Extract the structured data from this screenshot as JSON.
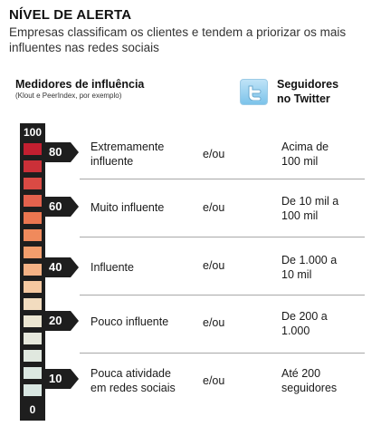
{
  "header": {
    "title": "NÍVEL DE ALERTA",
    "subtitle": "Empresas classificam os clientes e tendem a priorizar os mais influentes nas redes sociais"
  },
  "columns": {
    "meter_heading": "Medidores de influência",
    "meter_note": "(Klout e PeerIndex, por exemplo)",
    "twitter_heading_line1": "Seguidores",
    "twitter_heading_line2": "no Twitter",
    "twitter_icon": "twitter-bird-icon"
  },
  "scale": {
    "max_label": "100",
    "min_label": "0",
    "colors": [
      "#c21f30",
      "#cb3038",
      "#da4a44",
      "#e4624d",
      "#eb7650",
      "#f08a5c",
      "#f39e6c",
      "#f5b285",
      "#f5c8a0",
      "#f2dcbf",
      "#ece6d2",
      "#e6e8dc",
      "#e0e8df",
      "#dce8e1",
      "#d9e7e2"
    ]
  },
  "rows": [
    {
      "level": "80",
      "line1": "Extremamente",
      "line2": "influente",
      "connector": "e/ou",
      "twitter_line1": "Acima de",
      "twitter_line2": "100 mil"
    },
    {
      "level": "60",
      "line1": "Muito influente",
      "line2": "",
      "connector": "e/ou",
      "twitter_line1": "De 10 mil a",
      "twitter_line2": "100 mil"
    },
    {
      "level": "40",
      "line1": "Influente",
      "line2": "",
      "connector": "e/ou",
      "twitter_line1": "De 1.000 a",
      "twitter_line2": "10 mil"
    },
    {
      "level": "20",
      "line1": "Pouco influente",
      "line2": "",
      "connector": "e/ou",
      "twitter_line1": "De 200 a",
      "twitter_line2": "1.000"
    },
    {
      "level": "10",
      "line1": "Pouca atividade",
      "line2": "em redes sociais",
      "connector": "e/ou",
      "twitter_line1": "Até 200",
      "twitter_line2": "seguidores"
    }
  ]
}
